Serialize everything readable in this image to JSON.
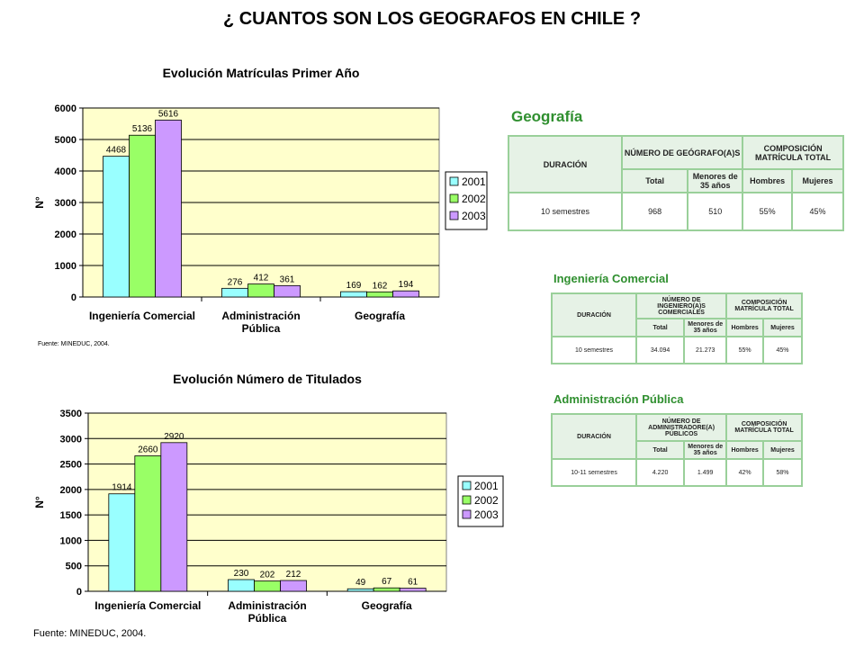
{
  "page": {
    "title": "¿ CUANTOS SON LOS GEOGRAFOS EN CHILE ?"
  },
  "colors": {
    "s2001": "#99ffff",
    "s2002": "#99ff66",
    "s2003": "#cc99ff",
    "plot_bg": "#ffffcc",
    "table_border": "#9ad09a",
    "table_title": "#2f8f2f"
  },
  "chart_data": [
    {
      "type": "bar",
      "title": "Evolución Matrículas Primer Año",
      "ylabel": "N°",
      "xlabel": "",
      "categories": [
        "Ingeniería Comercial",
        "Administración Pública",
        "Geografía"
      ],
      "series": [
        {
          "name": "2001",
          "values": [
            4468,
            276,
            169
          ]
        },
        {
          "name": "2002",
          "values": [
            5136,
            412,
            162
          ]
        },
        {
          "name": "2003",
          "values": [
            5616,
            361,
            194
          ]
        }
      ],
      "ylim": [
        0,
        6000
      ],
      "yticks": [
        0,
        1000,
        2000,
        3000,
        4000,
        5000,
        6000
      ],
      "grid": true,
      "legend": "right",
      "source": "Fuente: MINEDUC, 2004."
    },
    {
      "type": "bar",
      "title": "Evolución Número de Titulados",
      "ylabel": "N°",
      "xlabel": "",
      "categories": [
        "Ingeniería Comercial",
        "Administración Pública",
        "Geografía"
      ],
      "series": [
        {
          "name": "2001",
          "values": [
            1914,
            230,
            49
          ]
        },
        {
          "name": "2002",
          "values": [
            2660,
            202,
            67
          ]
        },
        {
          "name": "2003",
          "values": [
            2920,
            212,
            61
          ]
        }
      ],
      "ylim": [
        0,
        3500
      ],
      "yticks": [
        0,
        500,
        1000,
        1500,
        2000,
        2500,
        3000,
        3500
      ],
      "grid": true,
      "legend": "right",
      "source": "Fuente: MINEDUC, 2004."
    }
  ],
  "tables": [
    {
      "title": "Geografía",
      "h_duracion": "DURACIÓN",
      "h_numero": "NÚMERO DE GEÓGRAFO(A)S",
      "h_composicion": "COMPOSICIÓN MATRÍCULA TOTAL",
      "h_total": "Total",
      "h_menores": "Menores de 35 años",
      "h_hombres": "Hombres",
      "h_mujeres": "Mujeres",
      "duracion": "10 semestres",
      "total": "968",
      "menores": "510",
      "hombres": "55%",
      "mujeres": "45%"
    },
    {
      "title": "Ingeniería Comercial",
      "h_duracion": "DURACIÓN",
      "h_numero": "NÚMERO DE INGENIERO(A)S COMERCIALES",
      "h_composicion": "COMPOSICIÓN MATRÍCULA TOTAL",
      "h_total": "Total",
      "h_menores": "Menores de 35 años",
      "h_hombres": "Hombres",
      "h_mujeres": "Mujeres",
      "duracion": "10 semestres",
      "total": "34.094",
      "menores": "21.273",
      "hombres": "55%",
      "mujeres": "45%"
    },
    {
      "title": "Administración Pública",
      "h_duracion": "DURACIÓN",
      "h_numero": "NÚMERO DE ADMINISTRADORE(A) PÚBLICOS",
      "h_composicion": "COMPOSICIÓN MATRÍCULA TOTAL",
      "h_total": "Total",
      "h_menores": "Menores de 35 años",
      "h_hombres": "Hombres",
      "h_mujeres": "Mujeres",
      "duracion": "10-11 semestres",
      "total": "4.220",
      "menores": "1.499",
      "hombres": "42%",
      "mujeres": "58%"
    }
  ]
}
